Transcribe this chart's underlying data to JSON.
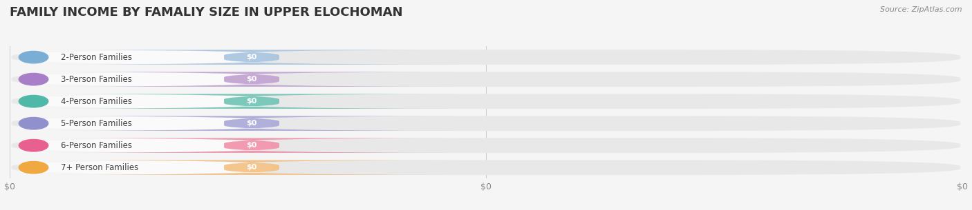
{
  "title": "FAMILY INCOME BY FAMALIY SIZE IN UPPER ELOCHOMAN",
  "source": "Source: ZipAtlas.com",
  "categories": [
    "2-Person Families",
    "3-Person Families",
    "4-Person Families",
    "5-Person Families",
    "6-Person Families",
    "7+ Person Families"
  ],
  "values": [
    0,
    0,
    0,
    0,
    0,
    0
  ],
  "bar_colors": [
    "#a8c4e0",
    "#c0a0d0",
    "#6ec4b4",
    "#a8a8d8",
    "#f090a8",
    "#f4c080"
  ],
  "dot_colors": [
    "#7aaed4",
    "#a87ec8",
    "#50b8a8",
    "#9090cc",
    "#e86090",
    "#f0a840"
  ],
  "background_color": "#f5f5f5",
  "bar_bg_color": "#e8e8e8",
  "bar_white_color": "#fafafa",
  "title_fontsize": 13,
  "source_fontsize": 8,
  "tick_label_fontsize": 9,
  "bar_label_fontsize": 8,
  "category_fontsize": 8.5
}
